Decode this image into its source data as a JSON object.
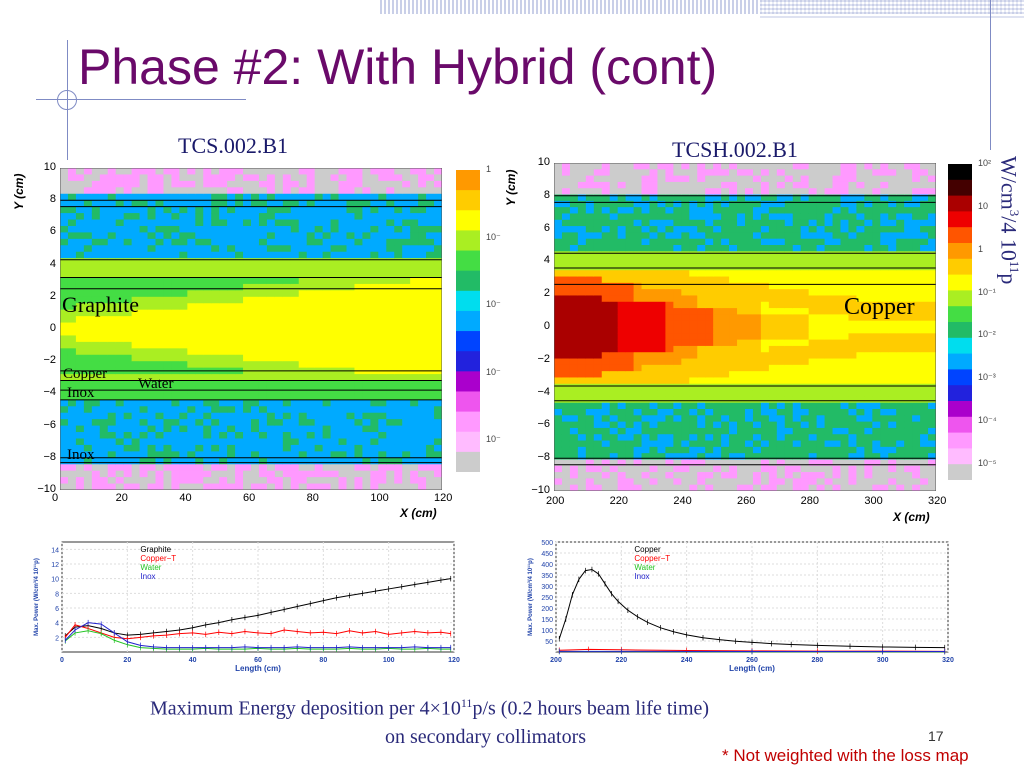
{
  "slide": {
    "title": "Phase #2: With Hybrid (cont)",
    "page_number": "17",
    "note": "* Not weighted with the loss map",
    "caption_line1_pre": "Maximum Energy deposition per 4×10",
    "caption_line1_sup": "11",
    "caption_line1_post": "p/s  (0.2 hours beam life time)",
    "caption_line2": "on secondary collimators"
  },
  "left_map": {
    "title": "TCS.002.B1",
    "x_ticks": [
      "0",
      "20",
      "40",
      "60",
      "80",
      "100",
      "120"
    ],
    "y_ticks": [
      "10",
      "8",
      "6",
      "4",
      "2",
      "0",
      "−2",
      "−4",
      "−6",
      "−8",
      "−10"
    ],
    "x_axis_label": "X (cm)",
    "y_axis_label": "Y (cm)",
    "labels": {
      "graphite": "Graphite",
      "copper": "Copper",
      "inox1": "Inox",
      "water": "Water",
      "inox2": "Inox"
    },
    "scale_ticks": [
      "1",
      "10⁻",
      "10⁻",
      "10⁻",
      "10⁻"
    ]
  },
  "right_map": {
    "title": "TCSH.002.B1",
    "x_ticks": [
      "200",
      "220",
      "240",
      "260",
      "280",
      "300",
      "320"
    ],
    "y_ticks": [
      "10",
      "8",
      "6",
      "4",
      "2",
      "0",
      "−2",
      "−4",
      "−6",
      "−8",
      "−10"
    ],
    "x_axis_label": "X (cm)",
    "y_axis_label": "Y (cm)",
    "labels": {
      "copper": "Copper"
    },
    "scale_ticks": [
      "10²",
      "10",
      "1",
      "10⁻¹",
      "10⁻²",
      "10⁻³",
      "10⁻⁴",
      "10⁻⁵"
    ],
    "scale_unit_pre": "W/cm",
    "scale_unit_sup1": "3",
    "scale_unit_mid": "/4 10",
    "scale_unit_sup2": "11",
    "scale_unit_post": "p"
  },
  "chart_data": [
    {
      "type": "line",
      "xlabel": "Length (cm)",
      "ylabel": "Max. Power (W/cm³/4 10¹¹p)",
      "xlim": [
        0,
        120
      ],
      "ylim": [
        0,
        15
      ],
      "x_ticks": [
        "0",
        "20",
        "40",
        "60",
        "80",
        "100",
        "120"
      ],
      "y_ticks": [
        "14",
        "12",
        "10",
        "8",
        "6",
        "4",
        "2"
      ],
      "grid": true,
      "legend_position": "top-center",
      "series": [
        {
          "name": "Graphite",
          "color": "#000000",
          "x": [
            1,
            4,
            8,
            12,
            16,
            20,
            24,
            28,
            32,
            36,
            40,
            44,
            48,
            52,
            56,
            60,
            64,
            68,
            72,
            76,
            80,
            84,
            88,
            92,
            96,
            100,
            104,
            108,
            112,
            116,
            119
          ],
          "y": [
            2.2,
            3.4,
            3.6,
            3.2,
            2.6,
            2.3,
            2.4,
            2.6,
            2.8,
            3.0,
            3.3,
            3.7,
            4.0,
            4.4,
            4.7,
            5.0,
            5.4,
            5.8,
            6.2,
            6.6,
            7.0,
            7.4,
            7.7,
            8.0,
            8.3,
            8.6,
            8.9,
            9.2,
            9.5,
            9.8,
            10.0
          ]
        },
        {
          "name": "Copper−T",
          "color": "#ff0000",
          "x": [
            1,
            4,
            8,
            12,
            16,
            20,
            24,
            28,
            32,
            36,
            40,
            44,
            48,
            52,
            56,
            60,
            64,
            68,
            72,
            76,
            80,
            84,
            88,
            92,
            96,
            100,
            104,
            108,
            112,
            116,
            119
          ],
          "y": [
            2.0,
            3.7,
            3.2,
            2.6,
            2.0,
            1.8,
            2.0,
            2.2,
            2.3,
            2.5,
            2.6,
            2.4,
            2.7,
            2.5,
            2.8,
            2.6,
            2.5,
            3.0,
            2.8,
            2.6,
            2.7,
            2.5,
            2.9,
            2.6,
            2.8,
            2.4,
            2.6,
            2.8,
            2.6,
            2.7,
            2.5
          ]
        },
        {
          "name": "Water",
          "color": "#22c422",
          "x": [
            1,
            4,
            8,
            12,
            16,
            20,
            24,
            28,
            32,
            36,
            40,
            44,
            48,
            52,
            56,
            60,
            64,
            68,
            72,
            76,
            80,
            84,
            88,
            92,
            96,
            100,
            104,
            108,
            112,
            116,
            119
          ],
          "y": [
            1.5,
            2.6,
            2.9,
            2.5,
            1.6,
            1.0,
            0.6,
            0.5,
            0.4,
            0.4,
            0.4,
            0.5,
            0.4,
            0.4,
            0.4,
            0.5,
            0.4,
            0.4,
            0.5,
            0.4,
            0.4,
            0.4,
            0.5,
            0.4,
            0.4,
            0.5,
            0.4,
            0.4,
            0.5,
            0.4,
            0.4
          ]
        },
        {
          "name": "Inox",
          "color": "#2222cc",
          "x": [
            1,
            4,
            8,
            12,
            16,
            20,
            24,
            28,
            32,
            36,
            40,
            44,
            48,
            52,
            56,
            60,
            64,
            68,
            72,
            76,
            80,
            84,
            88,
            92,
            96,
            100,
            104,
            108,
            112,
            116,
            119
          ],
          "y": [
            1.6,
            3.0,
            4.0,
            3.8,
            2.6,
            1.4,
            0.9,
            0.7,
            0.6,
            0.6,
            0.6,
            0.6,
            0.6,
            0.6,
            0.7,
            0.6,
            0.6,
            0.6,
            0.7,
            0.6,
            0.6,
            0.6,
            0.7,
            0.6,
            0.6,
            0.6,
            0.6,
            0.7,
            0.6,
            0.6,
            0.6
          ]
        }
      ]
    },
    {
      "type": "line",
      "xlabel": "Length (cm)",
      "ylabel": "Max. Power (W/cm³/4 10¹¹p)",
      "xlim": [
        200,
        320
      ],
      "ylim": [
        0,
        500
      ],
      "x_ticks": [
        "200",
        "220",
        "240",
        "260",
        "280",
        "300",
        "320"
      ],
      "y_ticks": [
        "500",
        "450",
        "400",
        "350",
        "300",
        "250",
        "200",
        "150",
        "100",
        "50"
      ],
      "grid": true,
      "legend_position": "top-center",
      "series": [
        {
          "name": "Copper",
          "color": "#000000",
          "x": [
            201,
            203,
            205,
            207,
            209,
            211,
            213,
            215,
            217,
            219,
            222,
            225,
            228,
            232,
            236,
            240,
            245,
            250,
            255,
            260,
            266,
            272,
            280,
            290,
            300,
            310,
            319
          ],
          "y": [
            60,
            150,
            260,
            330,
            370,
            375,
            355,
            310,
            265,
            230,
            190,
            160,
            135,
            110,
            92,
            78,
            65,
            56,
            49,
            44,
            38,
            34,
            30,
            26,
            23,
            21,
            20
          ]
        },
        {
          "name": "Copper−T",
          "color": "#ff0000",
          "x": [
            201,
            210,
            220,
            240,
            260,
            280,
            300,
            319
          ],
          "y": [
            8,
            12,
            10,
            7,
            5,
            4,
            4,
            3
          ]
        },
        {
          "name": "Water",
          "color": "#22c422",
          "x": [
            201,
            220,
            260,
            300,
            319
          ],
          "y": [
            2,
            2,
            1,
            1,
            1
          ]
        },
        {
          "name": "Inox",
          "color": "#2222cc",
          "x": [
            201,
            220,
            260,
            300,
            319
          ],
          "y": [
            3,
            3,
            2,
            2,
            2
          ]
        }
      ]
    }
  ]
}
